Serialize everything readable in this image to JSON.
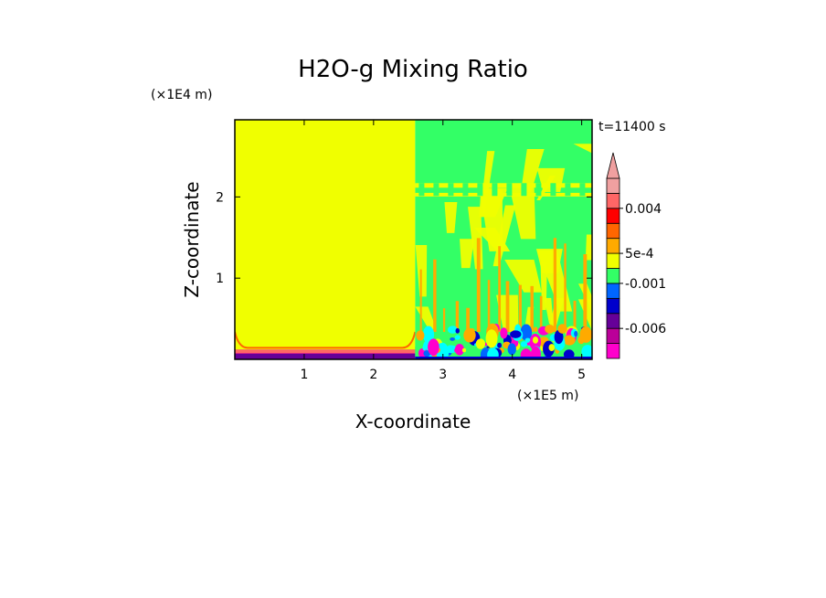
{
  "chart_data": {
    "type": "heatmap",
    "title": "H2O-g Mixing Ratio",
    "xlabel": "X-coordinate",
    "ylabel": "Z-coordinate",
    "x_unit": "(×1E5 m)",
    "y_unit": "(×1E4 m)",
    "time_label": "t=11400 s",
    "xlim": [
      0,
      5.15
    ],
    "ylim": [
      0,
      2.95
    ],
    "x_ticks": [
      1,
      2,
      3,
      4,
      5
    ],
    "y_ticks": [
      1,
      2
    ],
    "x_tick_labels": [
      "1",
      "2",
      "3",
      "4",
      "5"
    ],
    "y_tick_labels": [
      "1",
      "2"
    ],
    "regions": [
      {
        "name": "left-domain",
        "x": [
          0,
          2.6
        ],
        "z": [
          0.12,
          2.95
        ],
        "color": "#f0ff00"
      },
      {
        "name": "right-domain",
        "x": [
          2.6,
          5.15
        ],
        "z": [
          0,
          2.95
        ],
        "color": "#33ff66"
      }
    ],
    "colorbar": {
      "colors": [
        "#ff00cc",
        "#bb0099",
        "#660099",
        "#0000cc",
        "#0066ff",
        "#33ff66",
        "#f0ff00",
        "#ffaa00",
        "#ff6600",
        "#ff0000",
        "#ff6666",
        "#f0a0a0"
      ],
      "labels": [
        {
          "text": "-0.006",
          "value": -0.006
        },
        {
          "text": "-0.001",
          "value": -0.001
        },
        {
          "text": "5e-4",
          "value": 0.0005
        },
        {
          "text": "0.004",
          "value": 0.004
        }
      ],
      "extend": "max"
    }
  }
}
